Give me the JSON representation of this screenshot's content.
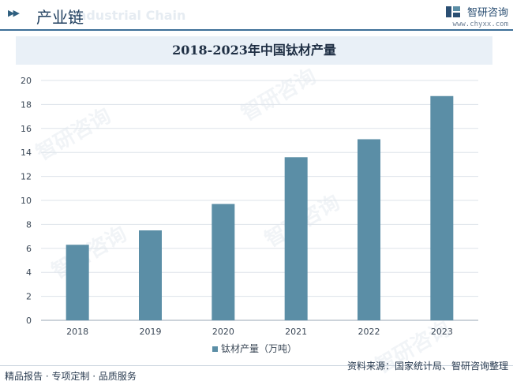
{
  "header": {
    "title": "产业链",
    "ghost_text": "Industrial Chain",
    "brand_name": "智研咨询",
    "brand_url": "www.chyxx.com"
  },
  "watermark_text": "智研咨询",
  "footer": {
    "left": "精品报告 · 专项定制 · 品质服务",
    "right": "资料来源：国家统计局、智研咨询整理"
  },
  "colors": {
    "bar": "#5b8ea6",
    "accent": "#3d6f98",
    "title_band": "#e9f0f7"
  },
  "chart_data": {
    "type": "bar",
    "title": "2018-2023年中国钛材产量",
    "categories": [
      "2018",
      "2019",
      "2020",
      "2021",
      "2022",
      "2023"
    ],
    "series": [
      {
        "name": "钛材产量（万吨）",
        "values": [
          6.3,
          7.5,
          9.7,
          13.6,
          15.1,
          18.7
        ]
      }
    ],
    "yticks": [
      "0",
      "2",
      "4",
      "6",
      "8",
      "10",
      "12",
      "14",
      "16",
      "18",
      "20"
    ],
    "ylim": [
      0,
      20
    ],
    "grid": true,
    "legend": "bottom"
  }
}
